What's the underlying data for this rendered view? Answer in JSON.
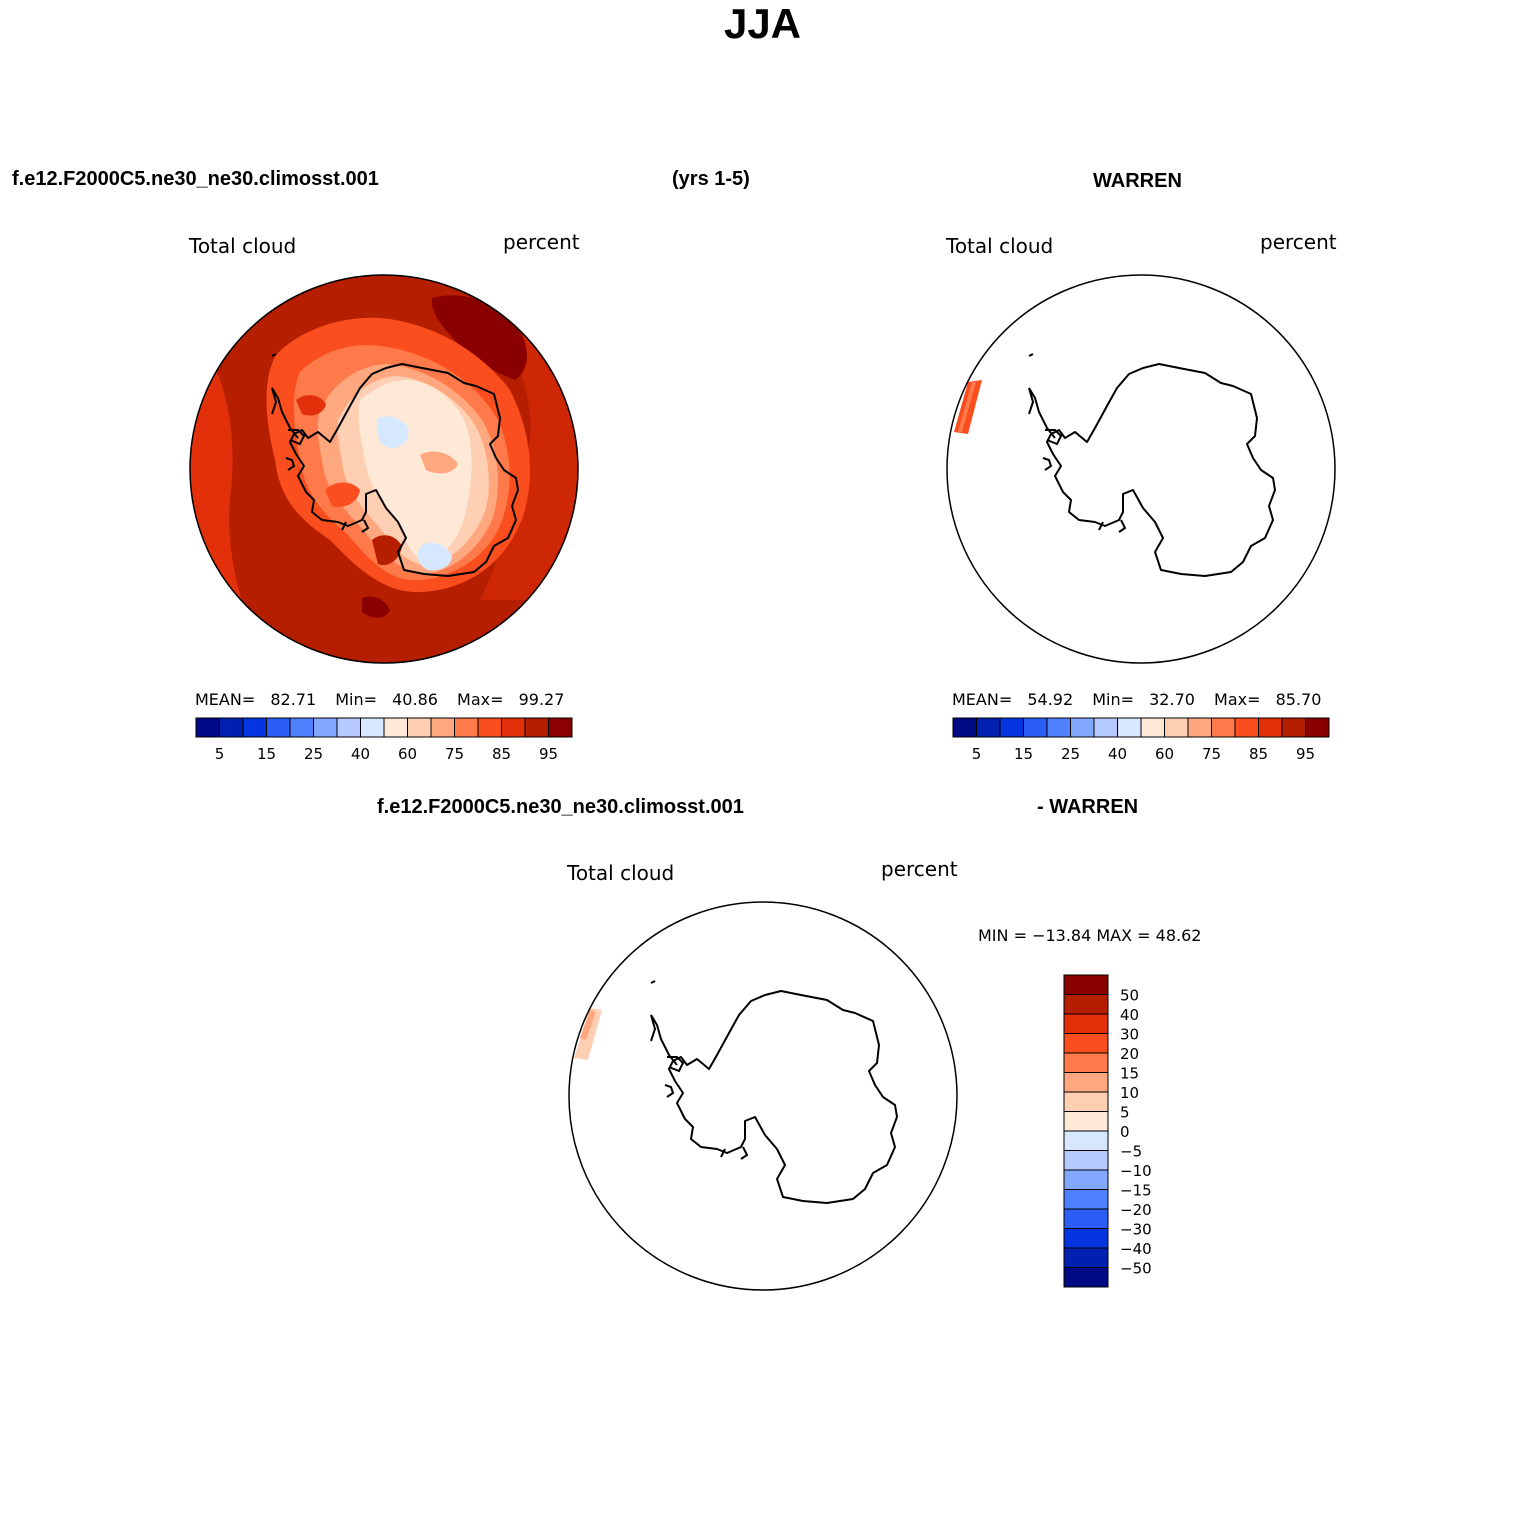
{
  "title": "JJA",
  "header": {
    "case_name": "f.e12.F2000C5.ne30_ne30.climosst.001",
    "years": "(yrs 1-5)",
    "obs_name": "WARREN",
    "diff_case": "f.e12.F2000C5.ne30_ne30.climosst.001",
    "diff_obs": "- WARREN"
  },
  "panels": [
    {
      "variable": "Total cloud",
      "units": "percent",
      "mean_label": "MEAN=",
      "mean": "82.71",
      "min_label": "Min=",
      "min": "40.86",
      "max_label": "Max=",
      "max": "99.27"
    },
    {
      "variable": "Total cloud",
      "units": "percent",
      "mean_label": "MEAN=",
      "mean": "54.92",
      "min_label": "Min=",
      "min": "32.70",
      "max_label": "Max=",
      "max": "85.70"
    },
    {
      "variable": "Total cloud",
      "units": "percent",
      "minmax_text": "MIN = −13.84 MAX =   48.62"
    }
  ],
  "colorbar_abs": {
    "colors": [
      "#000a85",
      "#0020b0",
      "#0535e0",
      "#2c5ef5",
      "#4f80ff",
      "#83a8ff",
      "#b6caff",
      "#d6e8ff",
      "#fde9d6",
      "#ffcfb3",
      "#ffa880",
      "#ff7a4a",
      "#fb4e1e",
      "#e1300a",
      "#b61e00",
      "#8a0000"
    ],
    "tick_labels": [
      "5",
      "15",
      "25",
      "40",
      "60",
      "75",
      "85",
      "95"
    ]
  },
  "colorbar_diff": {
    "colors": [
      "#000a85",
      "#0020b0",
      "#0535e0",
      "#2c5ef5",
      "#4f80ff",
      "#83a8ff",
      "#b6caff",
      "#d6e8ff",
      "#fde9d6",
      "#ffcfb3",
      "#ffa880",
      "#ff7a4a",
      "#fb4e1e",
      "#e1300a",
      "#b61e00",
      "#8a0000"
    ],
    "tick_labels": [
      "50",
      "40",
      "30",
      "20",
      "15",
      "10",
      "5",
      "0",
      "−5",
      "−10",
      "−15",
      "−20",
      "−30",
      "−40",
      "−50"
    ]
  }
}
